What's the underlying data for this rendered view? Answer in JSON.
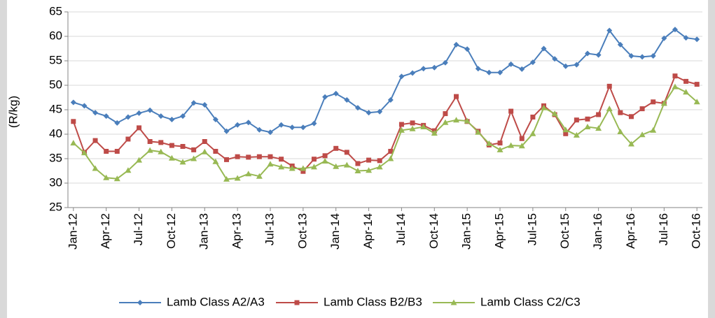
{
  "chart_data": {
    "type": "line",
    "y_label": "(R/kg)",
    "categories": [
      "Jan-12",
      null,
      null,
      "Apr-12",
      null,
      null,
      "Jul-12",
      null,
      null,
      "Oct-12",
      null,
      null,
      "Jan-13",
      null,
      null,
      "Apr-13",
      null,
      null,
      "Jul-13",
      null,
      null,
      "Oct-13",
      null,
      null,
      "Jan-14",
      null,
      null,
      "Apr-14",
      null,
      null,
      "Jul-14",
      null,
      null,
      "Oct-14",
      null,
      null,
      "Jan-15",
      null,
      null,
      "Apr-15",
      null,
      null,
      "Jul-15",
      null,
      null,
      "Oct-15",
      null,
      null,
      "Jan-16",
      null,
      null,
      "Apr-16",
      null,
      null,
      "Jul-16",
      null,
      null,
      "Oct-16"
    ],
    "series": [
      {
        "name": "Lamb Class A2/A3",
        "color": "#4a7ebb",
        "marker": "diamond",
        "values": [
          46.5,
          45.8,
          44.4,
          43.7,
          42.3,
          43.5,
          44.3,
          44.9,
          43.7,
          43.0,
          43.7,
          46.4,
          46.0,
          43.0,
          40.6,
          41.9,
          42.4,
          40.9,
          40.4,
          41.9,
          41.4,
          41.4,
          42.2,
          47.6,
          48.3,
          47.0,
          45.4,
          44.4,
          44.6,
          47.0,
          51.8,
          52.5,
          53.4,
          53.6,
          54.6,
          58.3,
          57.4,
          53.4,
          52.6,
          52.6,
          54.3,
          53.3,
          54.7,
          57.5,
          55.4,
          53.9,
          54.2,
          56.5,
          56.2,
          61.2,
          58.3,
          56.0,
          55.8,
          56.0,
          59.6,
          61.4,
          59.7,
          59.4
        ]
      },
      {
        "name": "Lamb Class B2/B3",
        "color": "#be4b48",
        "marker": "square",
        "values": [
          42.6,
          36.3,
          38.7,
          36.5,
          36.5,
          39.0,
          41.3,
          38.5,
          38.3,
          37.7,
          37.5,
          36.8,
          38.5,
          36.5,
          34.8,
          35.4,
          35.3,
          35.4,
          35.4,
          34.9,
          33.5,
          32.4,
          34.9,
          35.6,
          37.1,
          36.3,
          34.0,
          34.7,
          34.6,
          36.5,
          42.0,
          42.3,
          41.8,
          40.7,
          44.2,
          47.7,
          42.6,
          40.6,
          37.8,
          38.2,
          44.7,
          39.1,
          43.5,
          45.8,
          44.0,
          40.1,
          42.9,
          43.1,
          44.0,
          49.8,
          44.4,
          43.6,
          45.2,
          46.6,
          46.3,
          51.9,
          50.8,
          50.2
        ]
      },
      {
        "name": "Lamb Class C2/C3",
        "color": "#98b954",
        "marker": "triangle",
        "values": [
          38.2,
          36.2,
          33.0,
          31.1,
          30.9,
          32.6,
          34.7,
          36.7,
          36.4,
          35.1,
          34.3,
          35.0,
          36.4,
          34.4,
          30.8,
          31.0,
          31.9,
          31.4,
          33.9,
          33.3,
          33.0,
          33.0,
          33.3,
          34.5,
          33.4,
          33.7,
          32.5,
          32.6,
          33.3,
          35.0,
          40.8,
          41.1,
          41.5,
          40.2,
          42.4,
          42.9,
          42.7,
          40.4,
          38.1,
          36.8,
          37.7,
          37.6,
          40.1,
          45.4,
          44.2,
          40.9,
          39.8,
          41.5,
          41.2,
          45.2,
          40.5,
          38.0,
          39.9,
          40.8,
          46.3,
          49.7,
          48.6,
          46.6
        ]
      }
    ],
    "ylim": [
      25,
      65
    ],
    "yticks": [
      25,
      30,
      35,
      40,
      45,
      50,
      55,
      60,
      65
    ],
    "grid": true,
    "legend": "bottom"
  }
}
